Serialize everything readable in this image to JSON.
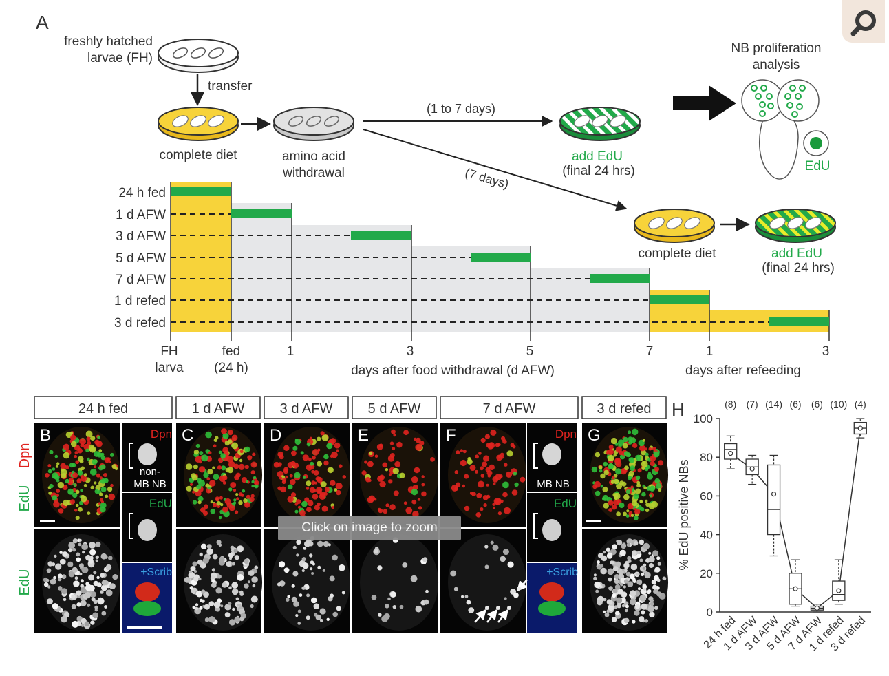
{
  "panelA": {
    "letter": "A",
    "fh_label_1": "freshly hatched",
    "fh_label_2": "larvae (FH)",
    "transfer": "transfer",
    "complete_diet": "complete diet",
    "aaw_1": "amino acid",
    "aaw_2": "withdrawal",
    "one_to_seven": "(1 to 7 days)",
    "seven_days": "(7 days)",
    "add_edu": "add EdU",
    "final_24": "(final 24 hrs)",
    "nb_analysis_1": "NB proliferation",
    "nb_analysis_2": "analysis",
    "edu": "EdU",
    "complete_diet_2": "complete diet",
    "add_edu_2": "add EdU",
    "final_24_2": "(final 24 hrs)",
    "timeline_rows": [
      "24 h fed",
      "1 d AFW",
      "3 d AFW",
      "5 d AFW",
      "7 d AFW",
      "1 d refed",
      "3 d refed"
    ],
    "axis_fh_1": "FH",
    "axis_fh_2": "larva",
    "axis_fed_1": "fed",
    "axis_fed_2": "(24 h)",
    "axis_ticks_afw": [
      "1",
      "3",
      "5",
      "7"
    ],
    "axis_ticks_refed": [
      "1",
      "3"
    ],
    "axis_afw_label": "days after food withdrawal (d AFW)",
    "axis_refed_label": "days after refeeding"
  },
  "panelsBG": {
    "headers": [
      "24 h fed",
      "1 d AFW",
      "3 d AFW",
      "5 d AFW",
      "7 d AFW",
      "3 d refed"
    ],
    "letters": [
      "B",
      "C",
      "D",
      "E",
      "F",
      "G"
    ],
    "side_dpn_label": "Dpn",
    "side_edu_label": "EdU",
    "side_edu_label_2": "EdU",
    "inset_dpn": "Dpn",
    "inset_non_1": "non-",
    "inset_non_2": "MB NB",
    "inset_edu": "EdU",
    "inset_scrib": "+Scrib",
    "inset_mbnb": "MB NB",
    "inset_edu_2": "EdU",
    "inset_scrib_2": "+Scrib",
    "colors": {
      "dpn": "#e0231f",
      "edu": "#22a94a",
      "scrib": "#3a7ad0"
    }
  },
  "panelH": {
    "letter": "H",
    "ylabel": "% EdU positive NBs",
    "counts": [
      "(8)",
      "(7)",
      "(14)",
      "(6)",
      "(6)",
      "(10)",
      "(4)"
    ]
  },
  "chart_data": {
    "type": "box",
    "categories": [
      "24 h fed",
      "1 d AFW",
      "3 d AFW",
      "5 d AFW",
      "7 d AFW",
      "1 d refed",
      "3 d refed"
    ],
    "ylabel": "% EdU positive NBs",
    "ylim": [
      0,
      100
    ],
    "yticks": [
      0,
      20,
      40,
      60,
      80,
      100
    ],
    "n": [
      8,
      7,
      14,
      6,
      6,
      10,
      4
    ],
    "boxes": [
      {
        "min": 74,
        "q1": 79,
        "median": 84,
        "q3": 87,
        "max": 91,
        "mean": 82
      },
      {
        "min": 66,
        "q1": 71,
        "median": 75,
        "q3": 79,
        "max": 81,
        "mean": 74
      },
      {
        "min": 29,
        "q1": 40,
        "median": 53,
        "q3": 76,
        "max": 81,
        "mean": 61
      },
      {
        "min": 3,
        "q1": 4,
        "median": 12,
        "q3": 20,
        "max": 27,
        "mean": 12
      },
      {
        "min": 0,
        "q1": 1,
        "median": 2,
        "q3": 3,
        "max": 4,
        "mean": 2
      },
      {
        "min": 4,
        "q1": 6,
        "median": 9,
        "q3": 16,
        "max": 27,
        "mean": 11
      },
      {
        "min": 90,
        "q1": 92,
        "median": 95,
        "q3": 98,
        "max": 100,
        "mean": 95
      }
    ]
  },
  "ui": {
    "zoom_tip": "Click on image to zoom",
    "search_icon": "magnifier-icon"
  }
}
